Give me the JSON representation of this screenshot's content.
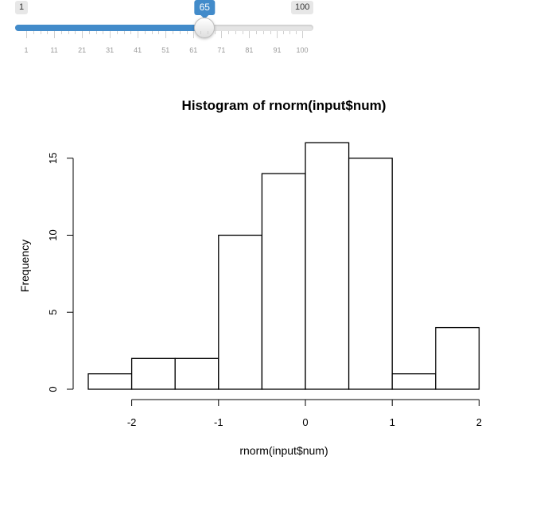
{
  "slider": {
    "min": 1,
    "max": 100,
    "value": 65,
    "min_label": "1",
    "max_label": "100",
    "value_label": "65",
    "accent": "#428bca",
    "ticks": [
      "1",
      "11",
      "21",
      "31",
      "41",
      "51",
      "61",
      "71",
      "81",
      "91",
      "100"
    ]
  },
  "chart_data": {
    "type": "bar",
    "title": "Histogram of rnorm(input$num)",
    "xlabel": "rnorm(input$num)",
    "ylabel": "Frequency",
    "bins": [
      {
        "x0": -2.5,
        "x1": -2.0,
        "count": 1
      },
      {
        "x0": -2.0,
        "x1": -1.5,
        "count": 2
      },
      {
        "x0": -1.5,
        "x1": -1.0,
        "count": 2
      },
      {
        "x0": -1.0,
        "x1": -0.5,
        "count": 10
      },
      {
        "x0": -0.5,
        "x1": 0.0,
        "count": 14
      },
      {
        "x0": 0.0,
        "x1": 0.5,
        "count": 16
      },
      {
        "x0": 0.5,
        "x1": 1.0,
        "count": 15
      },
      {
        "x0": 1.0,
        "x1": 1.5,
        "count": 1
      },
      {
        "x0": 1.5,
        "x1": 2.0,
        "count": 4
      }
    ],
    "xticks": [
      -2,
      -1,
      0,
      1,
      2
    ],
    "xtick_labels": [
      "-2",
      "-1",
      "0",
      "1",
      "2"
    ],
    "yticks": [
      0,
      5,
      10,
      15
    ],
    "ytick_labels": [
      "0",
      "5",
      "10",
      "15"
    ],
    "xlim": [
      -2.5,
      2.0
    ],
    "ylim": [
      0,
      16
    ],
    "grid": false,
    "bar_fill": "#ffffff",
    "bar_stroke": "#000000"
  }
}
